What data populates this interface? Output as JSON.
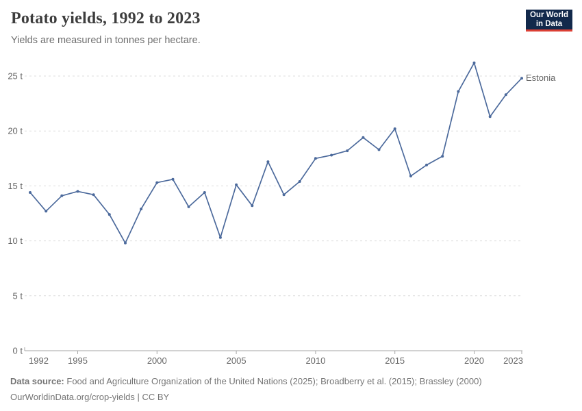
{
  "header": {
    "title": "Potato yields, 1992 to 2023",
    "subtitle": "Yields are measured in tonnes per hectare."
  },
  "logo": {
    "line1": "Our World",
    "line2": "in Data",
    "bg_color": "#12294B",
    "accent_color": "#DC3F34"
  },
  "chart_data": {
    "type": "line",
    "title": "Potato yields, 1992 to 2023",
    "subtitle": "Yields are measured in tonnes per hectare.",
    "ylabel": "tonnes per hectare",
    "x": [
      1992,
      1993,
      1994,
      1995,
      1996,
      1997,
      1998,
      1999,
      2000,
      2001,
      2002,
      2003,
      2004,
      2005,
      2006,
      2007,
      2008,
      2009,
      2010,
      2011,
      2012,
      2013,
      2014,
      2015,
      2016,
      2017,
      2018,
      2019,
      2020,
      2021,
      2022,
      2023
    ],
    "series": [
      {
        "name": "Estonia",
        "color": "#4C6A9C",
        "values": [
          14.4,
          12.7,
          14.1,
          14.5,
          14.2,
          12.4,
          9.8,
          12.9,
          15.3,
          15.6,
          13.1,
          14.4,
          10.3,
          15.1,
          13.2,
          17.2,
          14.2,
          15.4,
          17.5,
          17.8,
          18.2,
          19.4,
          18.3,
          20.2,
          15.9,
          16.9,
          17.7,
          23.6,
          26.2,
          21.3,
          23.3,
          24.8
        ]
      }
    ],
    "x_ticks": [
      1992,
      1995,
      2000,
      2005,
      2010,
      2015,
      2020,
      2023
    ],
    "y_ticks": [
      0,
      5,
      10,
      15,
      20,
      25
    ],
    "y_tick_suffix": " t",
    "xlim": [
      1992,
      2023
    ],
    "ylim": [
      0,
      26.5
    ],
    "grid": "horizontal dashed",
    "legend_position": "end-of-line label",
    "grid_color": "#dcdcdc",
    "axis_color": "#a5a5a5",
    "tick_label_color": "#666666"
  },
  "footer": {
    "source_label": "Data source:",
    "source_text": "Food and Agriculture Organization of the United Nations (2025); Broadberry et al. (2015); Brassley (2000)",
    "link": "OurWorldinData.org/crop-yields",
    "license": "| CC BY"
  }
}
